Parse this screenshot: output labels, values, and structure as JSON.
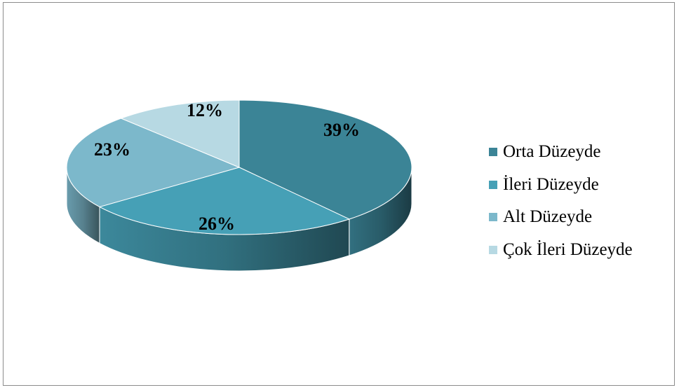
{
  "chart_data": {
    "type": "pie",
    "title": "",
    "categories": [
      "Orta Düzeyde",
      "İleri Düzeyde",
      "Alt Düzeyde",
      "Çok İleri Düzeyde"
    ],
    "values": [
      39,
      26,
      23,
      12
    ],
    "labels": [
      "39%",
      "26%",
      "23%",
      "12%"
    ],
    "colors": [
      "#3b8496",
      "#46a0b6",
      "#7cb8cb",
      "#b7d9e3"
    ],
    "legend_position": "right",
    "style": "3d"
  }
}
